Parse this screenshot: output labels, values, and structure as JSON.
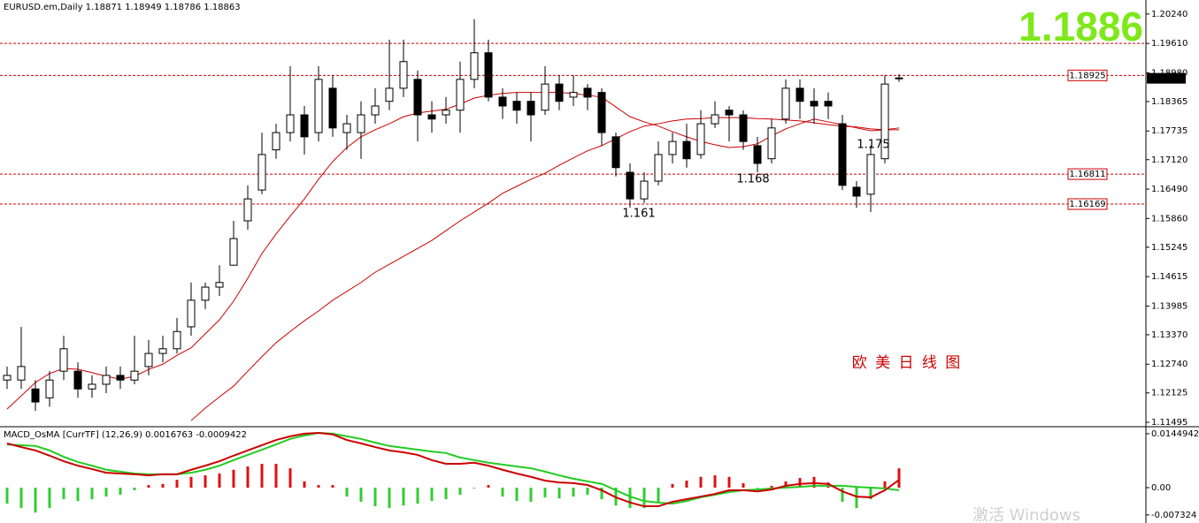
{
  "chart_data": [
    {
      "type": "candlestick",
      "title": "EURUSD.em,Daily 1.18871 1.18949 1.18786 1.18863",
      "open": [
        1.124,
        1.124,
        1.1221,
        1.1202,
        1.1259,
        1.1259,
        1.1221,
        1.1231,
        1.125,
        1.124,
        1.1269,
        1.1297,
        1.1307,
        1.1354,
        1.1411,
        1.1439,
        1.1486,
        1.1581,
        1.1647,
        1.1733,
        1.177,
        1.1808,
        1.177,
        1.1865,
        1.177,
        1.177,
        1.1808,
        1.1837,
        1.1865,
        1.1884,
        1.1808,
        1.1808,
        1.1818,
        1.1884,
        1.1941,
        1.1846,
        1.1837,
        1.1837,
        1.1818,
        1.1874,
        1.1846,
        1.1865,
        1.1856,
        1.1761,
        1.1685,
        1.1628,
        1.1666,
        1.1723,
        1.1751,
        1.1723,
        1.1789,
        1.1818,
        1.1808,
        1.1742,
        1.1714,
        1.1799,
        1.1865,
        1.1837,
        1.1837,
        1.1789,
        1.1653,
        1.1638,
        1.1714,
        1.18871
      ],
      "high": [
        1.1269,
        1.1354,
        1.124,
        1.1259,
        1.1335,
        1.1278,
        1.125,
        1.1269,
        1.1269,
        1.1335,
        1.1326,
        1.1335,
        1.1373,
        1.1449,
        1.1449,
        1.1486,
        1.1581,
        1.1657,
        1.177,
        1.1789,
        1.1912,
        1.1827,
        1.1912,
        1.1893,
        1.1808,
        1.1837,
        1.1865,
        1.1969,
        1.1969,
        1.1903,
        1.1837,
        1.1846,
        1.1922,
        1.2013,
        1.1969,
        1.1865,
        1.1856,
        1.1856,
        1.1912,
        1.1893,
        1.1893,
        1.1874,
        1.1865,
        1.177,
        1.1704,
        1.1685,
        1.1751,
        1.177,
        1.1789,
        1.1818,
        1.1837,
        1.1827,
        1.1818,
        1.1761,
        1.1799,
        1.1884,
        1.1884,
        1.1865,
        1.1856,
        1.1808,
        1.1666,
        1.1742,
        1.1893,
        1.18949
      ],
      "low": [
        1.1221,
        1.1221,
        1.1174,
        1.1183,
        1.124,
        1.1202,
        1.1202,
        1.1212,
        1.1221,
        1.1231,
        1.125,
        1.1278,
        1.1297,
        1.1335,
        1.1392,
        1.142,
        1.1486,
        1.1562,
        1.1638,
        1.1714,
        1.1751,
        1.1723,
        1.1751,
        1.1761,
        1.1733,
        1.1714,
        1.1789,
        1.1818,
        1.1846,
        1.1751,
        1.177,
        1.1789,
        1.177,
        1.1865,
        1.1837,
        1.1799,
        1.1789,
        1.1751,
        1.1808,
        1.1818,
        1.1827,
        1.1818,
        1.1742,
        1.1676,
        1.1609,
        1.1619,
        1.1657,
        1.1704,
        1.1695,
        1.1714,
        1.178,
        1.1751,
        1.1733,
        1.1685,
        1.1704,
        1.1789,
        1.1799,
        1.1789,
        1.1799,
        1.1647,
        1.1609,
        1.16,
        1.1704,
        1.18786
      ],
      "close": [
        1.125,
        1.1269,
        1.1193,
        1.124,
        1.1307,
        1.1221,
        1.1231,
        1.125,
        1.124,
        1.1259,
        1.1297,
        1.1307,
        1.1344,
        1.1411,
        1.1439,
        1.1449,
        1.1543,
        1.1628,
        1.1723,
        1.177,
        1.1808,
        1.1761,
        1.1884,
        1.178,
        1.1789,
        1.1808,
        1.1827,
        1.1865,
        1.1922,
        1.1808,
        1.1799,
        1.1818,
        1.1884,
        1.1941,
        1.1846,
        1.1827,
        1.1818,
        1.1808,
        1.1874,
        1.1837,
        1.1856,
        1.1846,
        1.177,
        1.1695,
        1.1628,
        1.1666,
        1.1723,
        1.1751,
        1.1714,
        1.1789,
        1.1808,
        1.1808,
        1.1751,
        1.1704,
        1.178,
        1.1865,
        1.1837,
        1.1827,
        1.1827,
        1.1657,
        1.1634,
        1.1723,
        1.1874,
        1.18863
      ],
      "up_color": "#ffffff",
      "down_color": "#000000",
      "lines": [
        {
          "color": "#cc0000",
          "values": [
            1.1178,
            1.1206,
            1.1235,
            1.1254,
            1.1265,
            1.1263,
            1.1256,
            1.1248,
            1.1242,
            1.1248,
            1.1263,
            1.1274,
            1.1293,
            1.1309,
            1.1339,
            1.1369,
            1.1409,
            1.1458,
            1.1511,
            1.1553,
            1.1591,
            1.1628,
            1.167,
            1.1708,
            1.1738,
            1.1761,
            1.1776,
            1.1789,
            1.1804,
            1.1812,
            1.1816,
            1.182,
            1.1831,
            1.1844,
            1.185,
            1.1854,
            1.1856,
            1.1856,
            1.1856,
            1.1856,
            1.1854,
            1.185,
            1.1846,
            1.1825,
            1.1804,
            1.1793,
            1.1784,
            1.1772,
            1.1761,
            1.1751,
            1.1744,
            1.1738,
            1.174,
            1.1746,
            1.1763,
            1.1778,
            1.1789,
            1.1799,
            1.1793,
            1.1787,
            1.178,
            1.1774,
            1.1776,
            1.178
          ]
        },
        {
          "color": "#cc0000",
          "values": [
            null,
            null,
            null,
            null,
            null,
            null,
            null,
            null,
            null,
            null,
            null,
            null,
            null,
            1.1153,
            1.118,
            1.1204,
            1.1227,
            1.1259,
            1.129,
            1.132,
            1.1344,
            1.1367,
            1.1388,
            1.1411,
            1.143,
            1.1449,
            1.1471,
            1.1488,
            1.1505,
            1.1522,
            1.1539,
            1.156,
            1.1581,
            1.16,
            1.1619,
            1.164,
            1.1655,
            1.167,
            1.1683,
            1.17,
            1.1716,
            1.1731,
            1.1742,
            1.1757,
            1.1772,
            1.1784,
            1.1789,
            1.1795,
            1.1799,
            1.18,
            1.1802,
            1.1802,
            1.1802,
            1.18,
            1.1799,
            1.1797,
            1.1795,
            1.1791,
            1.1787,
            1.1784,
            1.1782,
            1.1778,
            1.1776,
            1.1776
          ]
        }
      ],
      "hlines": [
        {
          "value": 1.1961
        },
        {
          "value": 1.18925,
          "boxed": true
        },
        {
          "value": 1.16811,
          "boxed": true
        },
        {
          "value": 1.16169,
          "boxed": true
        }
      ],
      "hline_color": "#cc0000",
      "last_price": 1.18863,
      "big_price": "1.1886",
      "annotations": [
        "1.161",
        "1.168",
        "1.175"
      ],
      "note": "欧 美 日 线 图",
      "ylim": [
        1.1142,
        1.2054
      ],
      "yticks": [
        {
          "value": 1.2024,
          "label": "1.20240"
        },
        {
          "value": 1.1961,
          "label": "1.19610"
        },
        {
          "value": 1.1898,
          "label": "1.18980"
        },
        1.18365,
        1.17735,
        {
          "value": 1.1712,
          "label": "1.17120"
        },
        {
          "value": 1.1649,
          "label": "1.16490"
        },
        {
          "value": 1.1586,
          "label": "1.15860"
        },
        1.15245,
        1.14615,
        1.13985,
        {
          "value": 1.1337,
          "label": "1.13370"
        },
        {
          "value": 1.1274,
          "label": "1.12740"
        },
        1.12125,
        1.11495
      ]
    },
    {
      "type": "macd",
      "title": "MACD_OsMA [CurrTF] (12,26,9) 0.0016763 -0.0009422",
      "histogram": [
        -0.0043,
        -0.0055,
        -0.0067,
        -0.0055,
        -0.0031,
        -0.0036,
        -0.0031,
        -0.0024,
        -0.0019,
        -0.0007,
        0.0007,
        0.001,
        0.0021,
        0.0029,
        0.0033,
        0.0038,
        0.0048,
        0.0057,
        0.0064,
        0.0064,
        0.0052,
        0.0017,
        0.0007,
        0.0007,
        -0.0024,
        -0.0038,
        -0.005,
        -0.0055,
        -0.0048,
        -0.0043,
        -0.0036,
        -0.0031,
        -0.0019,
        -0.0002,
        0.0007,
        -0.0024,
        -0.0036,
        -0.0038,
        -0.0026,
        -0.0029,
        -0.0024,
        -0.0019,
        -0.0031,
        -0.0048,
        -0.0055,
        -0.0055,
        -0.0038,
        0.001,
        0.0019,
        0.0029,
        0.0033,
        0.0029,
        0.0012,
        -0.0002,
        0.0005,
        0.0017,
        0.0026,
        0.0029,
        0.0014,
        -0.0038,
        -0.0055,
        -0.0031,
        0.0017,
        0.0052
      ],
      "up_color": "#dd1111",
      "down_color": "#33cc33",
      "macd": {
        "color": "#cc0000",
        "values": [
          0.0119,
          0.0109,
          0.01,
          0.0086,
          0.0071,
          0.0059,
          0.005,
          0.004,
          0.0038,
          0.0036,
          0.0033,
          0.0036,
          0.0036,
          0.0048,
          0.0059,
          0.0071,
          0.0086,
          0.01,
          0.0114,
          0.0128,
          0.0138,
          0.0145,
          0.0147,
          0.0143,
          0.0128,
          0.0119,
          0.0109,
          0.01,
          0.0095,
          0.0088,
          0.0074,
          0.0064,
          0.0064,
          0.0067,
          0.0059,
          0.0048,
          0.0038,
          0.0029,
          0.0019,
          0.0014,
          0.0012,
          0.0007,
          -0.0007,
          -0.0026,
          -0.004,
          -0.005,
          -0.005,
          -0.0038,
          -0.0031,
          -0.0024,
          -0.0017,
          -0.0007,
          -0.0007,
          -0.001,
          -0.0005,
          0.0005,
          0.001,
          0.0012,
          0.001,
          -0.001,
          -0.0024,
          -0.0026,
          -0.0007,
          0.0021
        ]
      },
      "signal": {
        "color": "#22cc22",
        "values": [
          0.0116,
          0.0114,
          0.0112,
          0.01,
          0.0083,
          0.0069,
          0.0059,
          0.0048,
          0.0043,
          0.0038,
          0.0036,
          0.0036,
          0.0036,
          0.004,
          0.0048,
          0.0059,
          0.0074,
          0.0088,
          0.0102,
          0.0116,
          0.0131,
          0.014,
          0.0147,
          0.0145,
          0.0138,
          0.0131,
          0.0121,
          0.0112,
          0.0107,
          0.0102,
          0.0097,
          0.0093,
          0.0081,
          0.0074,
          0.0067,
          0.0062,
          0.0057,
          0.0052,
          0.0043,
          0.0033,
          0.0024,
          0.0017,
          0.001,
          -0.0007,
          -0.0024,
          -0.0036,
          -0.004,
          -0.0043,
          -0.0036,
          -0.0026,
          -0.0019,
          -0.0012,
          -0.0007,
          -0.0005,
          -0.0002,
          0,
          0.0002,
          0.0005,
          0.0005,
          0.0005,
          0.0002,
          0,
          -0.0002,
          -0.0007
        ]
      },
      "ylim": [
        -0.0095,
        0.0159
      ],
      "yticks": [
        0.0144942,
        {
          "value": 0,
          "label": "0.00"
        },
        -0.007324
      ]
    }
  ],
  "watermark": "激活 Windows"
}
